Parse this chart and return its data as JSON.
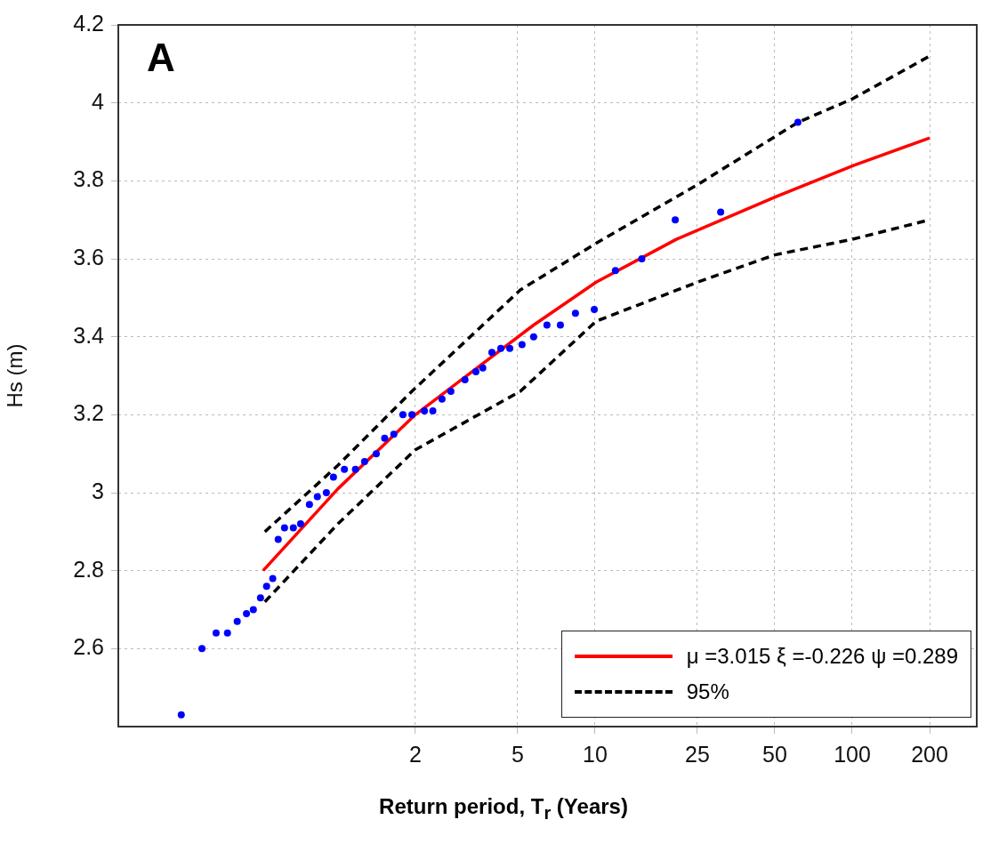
{
  "chart_data": {
    "type": "scatter",
    "xlabel": "Return period, T$_{r}$ (Years)",
    "ylabel": "Hs (m)",
    "annotations": [
      "A"
    ],
    "xlim": [
      0.14,
      305
    ],
    "xticks": [
      2,
      5,
      10,
      25,
      50,
      100,
      200
    ],
    "log": "x",
    "ylim": [
      2.4,
      4.2
    ],
    "yticks": [
      2.6,
      2.8,
      3,
      3.2,
      3.4,
      3.6,
      3.8,
      4,
      4.2
    ],
    "grid": true,
    "legend": "bottom right",
    "series": [
      {
        "color": "#0000ff",
        "marker": "circle",
        "x": [
          0.246,
          0.296,
          0.336,
          0.372,
          0.406,
          0.441,
          0.469,
          0.5,
          0.528,
          0.558,
          0.586,
          0.62,
          0.671,
          0.716,
          0.775,
          0.832,
          0.902,
          0.961,
          1.06,
          1.17,
          1.27,
          1.41,
          1.52,
          1.65,
          1.79,
          1.94,
          2.17,
          2.34,
          2.54,
          2.75,
          3.12,
          3.44,
          3.66,
          3.97,
          4.3,
          4.66,
          5.2,
          5.77,
          6.5,
          7.33,
          8.39,
          9.93,
          12,
          15.2,
          20.5,
          30.8,
          61.5
        ],
        "values": [
          2.43,
          2.6,
          2.64,
          2.64,
          2.67,
          2.69,
          2.7,
          2.73,
          2.76,
          2.78,
          2.88,
          2.91,
          2.91,
          2.92,
          2.97,
          2.99,
          3,
          3.04,
          3.06,
          3.06,
          3.08,
          3.1,
          3.14,
          3.15,
          3.2,
          3.2,
          3.21,
          3.21,
          3.24,
          3.26,
          3.29,
          3.31,
          3.32,
          3.36,
          3.37,
          3.37,
          3.38,
          3.4,
          3.43,
          3.43,
          3.46,
          3.47,
          3.57,
          3.6,
          3.7,
          3.72,
          3.95
        ]
      },
      {
        "type": "line",
        "name": "μ =3.015 ξ =-0.226 ψ =0.289",
        "color": "#ff0000",
        "line_style": "solid",
        "marker": "none",
        "x": [
          0.512,
          1,
          2,
          5.77,
          10.1,
          20.7,
          50.8,
          101.6,
          200
        ],
        "values": [
          2.8,
          3.01,
          3.2,
          3.43,
          3.54,
          3.65,
          3.76,
          3.84,
          3.91
        ]
      },
      {
        "type": "line",
        "name": "95%",
        "color": "#000000",
        "line_style": "dashed",
        "marker": "none",
        "x": [
          0.52,
          1,
          1.94,
          5.12,
          10.1,
          25,
          61.5,
          100,
          200
        ],
        "values": [
          2.9,
          3.07,
          3.26,
          3.52,
          3.64,
          3.79,
          3.95,
          4.01,
          4.12
        ]
      },
      {
        "type": "line",
        "color": "#000000",
        "line_style": "dashed",
        "marker": "none",
        "x": [
          0.52,
          1,
          2,
          5.12,
          10.1,
          25,
          50,
          100,
          200
        ],
        "values": [
          2.72,
          2.92,
          3.11,
          3.26,
          3.44,
          3.54,
          3.61,
          3.65,
          3.7
        ]
      }
    ]
  }
}
